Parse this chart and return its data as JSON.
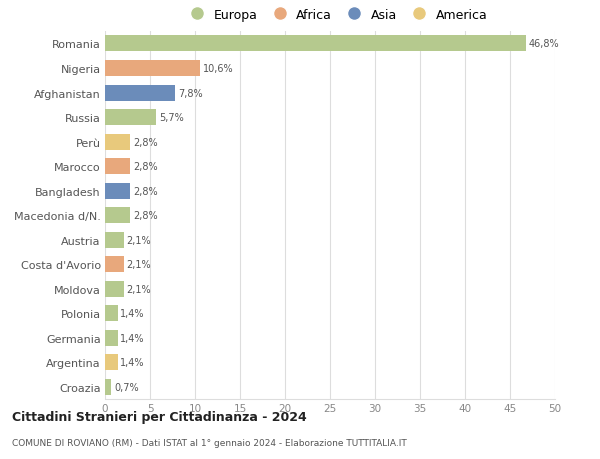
{
  "countries": [
    "Romania",
    "Nigeria",
    "Afghanistan",
    "Russia",
    "Perù",
    "Marocco",
    "Bangladesh",
    "Macedonia d/N.",
    "Austria",
    "Costa d'Avorio",
    "Moldova",
    "Polonia",
    "Germania",
    "Argentina",
    "Croazia"
  ],
  "values": [
    46.8,
    10.6,
    7.8,
    5.7,
    2.8,
    2.8,
    2.8,
    2.8,
    2.1,
    2.1,
    2.1,
    1.4,
    1.4,
    1.4,
    0.7
  ],
  "labels": [
    "46,8%",
    "10,6%",
    "7,8%",
    "5,7%",
    "2,8%",
    "2,8%",
    "2,8%",
    "2,8%",
    "2,1%",
    "2,1%",
    "2,1%",
    "1,4%",
    "1,4%",
    "1,4%",
    "0,7%"
  ],
  "colors": [
    "#b5c98e",
    "#e8a87c",
    "#6b8cba",
    "#b5c98e",
    "#e8c97c",
    "#e8a87c",
    "#6b8cba",
    "#b5c98e",
    "#b5c98e",
    "#e8a87c",
    "#b5c98e",
    "#b5c98e",
    "#b5c98e",
    "#e8c97c",
    "#b5c98e"
  ],
  "legend_labels": [
    "Europa",
    "Africa",
    "Asia",
    "America"
  ],
  "legend_colors": [
    "#b5c98e",
    "#e8a87c",
    "#6b8cba",
    "#e8c97c"
  ],
  "xlim": [
    0,
    50
  ],
  "xticks": [
    0,
    5,
    10,
    15,
    20,
    25,
    30,
    35,
    40,
    45,
    50
  ],
  "title1": "Cittadini Stranieri per Cittadinanza - 2024",
  "title2": "COMUNE DI ROVIANO (RM) - Dati ISTAT al 1° gennaio 2024 - Elaborazione TUTTITALIA.IT",
  "bg_color": "#ffffff",
  "grid_color": "#dddddd",
  "bar_height": 0.65
}
